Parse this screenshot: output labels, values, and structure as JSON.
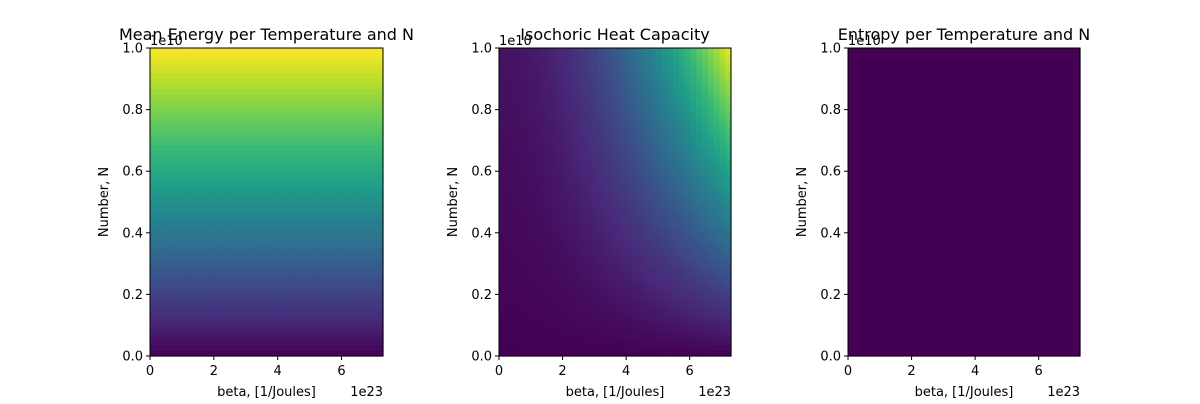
{
  "figure": {
    "background": "#ffffff",
    "colormap": "viridis",
    "colormap_stops": [
      "#440154",
      "#482878",
      "#3e4989",
      "#31688e",
      "#26828e",
      "#1f9e89",
      "#35b779",
      "#6ece58",
      "#b5de2b",
      "#fde725"
    ]
  },
  "chart_data": [
    {
      "type": "heatmap",
      "title": "Mean Energy per Temperature and N",
      "xlabel": "beta, [1/Joules]",
      "ylabel": "Number, N",
      "xlim": [
        0,
        7.3e+23
      ],
      "ylim": [
        0,
        10000000000.0
      ],
      "x_ticks": [
        0,
        2,
        4,
        6
      ],
      "y_ticks": [
        "0.0",
        "0.2",
        "0.4",
        "0.6",
        "0.8",
        "1.0"
      ],
      "x_offset_label": "1e23",
      "y_offset_label": "1e10",
      "colormap": "viridis",
      "field_description": "normalized color level depends linearly on N, nearly independent of beta",
      "z_model": "N"
    },
    {
      "type": "heatmap",
      "title": "Isochoric Heat Capacity",
      "xlabel": "beta, [1/Joules]",
      "ylabel": "Number, N",
      "xlim": [
        0,
        7.3e+23
      ],
      "ylim": [
        0,
        10000000000.0
      ],
      "x_ticks": [
        0,
        2,
        4,
        6
      ],
      "y_ticks": [
        "0.0",
        "0.2",
        "0.4",
        "0.6",
        "0.8",
        "1.0"
      ],
      "x_offset_label": "1e23",
      "y_offset_label": "1e10",
      "colormap": "viridis",
      "field_description": "normalized color level grows with both beta and N, maximum at top-right corner",
      "z_model": "N_times_beta_squared"
    },
    {
      "type": "heatmap",
      "title": "Entropy per Temperature and N",
      "xlabel": "beta, [1/Joules]",
      "ylabel": "Number, N",
      "xlim": [
        0,
        7.3e+23
      ],
      "ylim": [
        0,
        10000000000.0
      ],
      "x_ticks": [
        0,
        2,
        4,
        6
      ],
      "y_ticks": [
        "0.0",
        "0.2",
        "0.4",
        "0.6",
        "0.8",
        "1.0"
      ],
      "x_offset_label": "1e23",
      "y_offset_label": "1e10",
      "colormap": "viridis",
      "field_description": "uniform color at minimum of colormap",
      "z_model": "constant_min"
    }
  ]
}
